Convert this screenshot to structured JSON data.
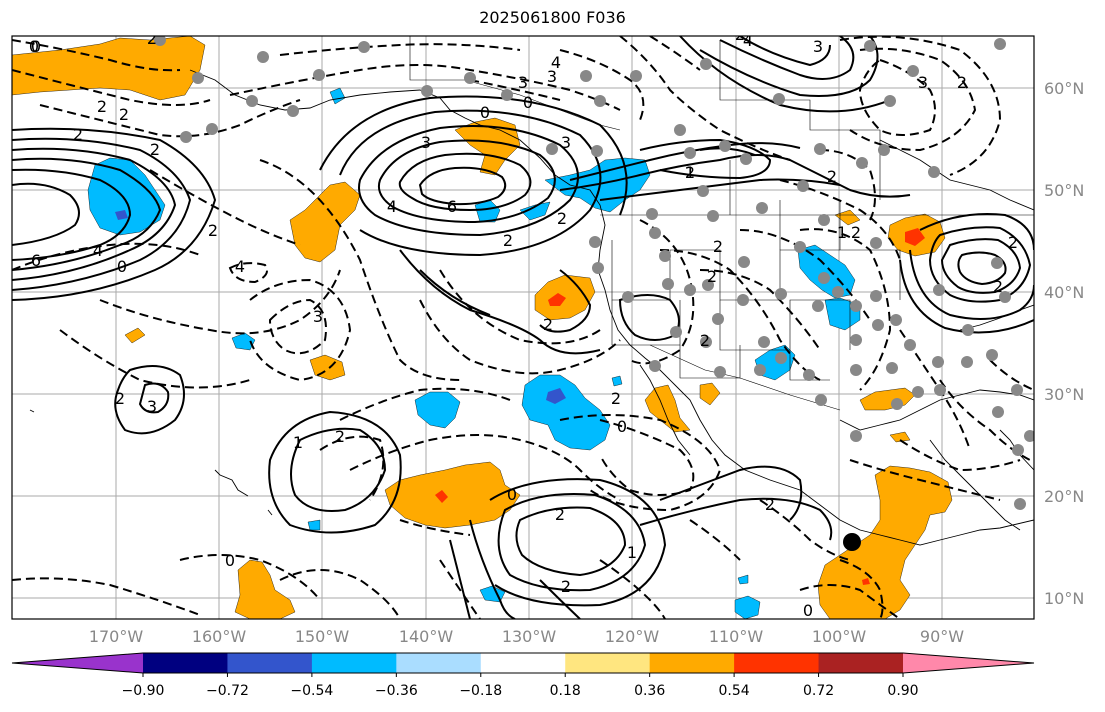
{
  "title": "2025061800 F036",
  "map": {
    "lat_labels": [
      "60°N",
      "50°N",
      "40°N",
      "30°N",
      "20°N",
      "10°N"
    ],
    "lon_labels": [
      "170°W",
      "160°W",
      "150°W",
      "140°W",
      "130°W",
      "120°W",
      "110°W",
      "100°W",
      "90°W"
    ],
    "contour_labels": [
      "0",
      "2",
      "2",
      "2",
      "2",
      "2",
      "0",
      "3",
      "3",
      "4",
      "3",
      "3",
      "2",
      "6",
      "4",
      "2",
      "2",
      "0",
      "4",
      "3",
      "6",
      "4",
      "2",
      "2",
      "0",
      "3",
      "2",
      "1",
      "2",
      "2",
      "2",
      "2",
      "2",
      "2",
      "1",
      "2",
      "2",
      "3",
      "4",
      "2",
      "2",
      "3",
      "1",
      "0",
      "2",
      "1",
      "2",
      "2",
      "2",
      "0",
      "0",
      "0",
      "0"
    ],
    "marker": "storm-center"
  },
  "colorbar": {
    "colors": [
      "#9933cc",
      "#000080",
      "#3355cc",
      "#00bbff",
      "#aaddff",
      "#ffffff",
      "#ffe680",
      "#ffaa00",
      "#ff3300",
      "#aa2222",
      "#ff88aa"
    ],
    "tick_labels": [
      "−0.90",
      "−0.72",
      "−0.54",
      "−0.36",
      "−0.18",
      "0.18",
      "0.36",
      "0.54",
      "0.72",
      "0.90"
    ]
  },
  "colors": {
    "positive_fill": "#ffaa00",
    "positive_core": "#ff3300",
    "negative_fill": "#00bbff",
    "negative_core": "#3355cc",
    "station_dots": "#888888",
    "grid": "#aaaaaa"
  }
}
